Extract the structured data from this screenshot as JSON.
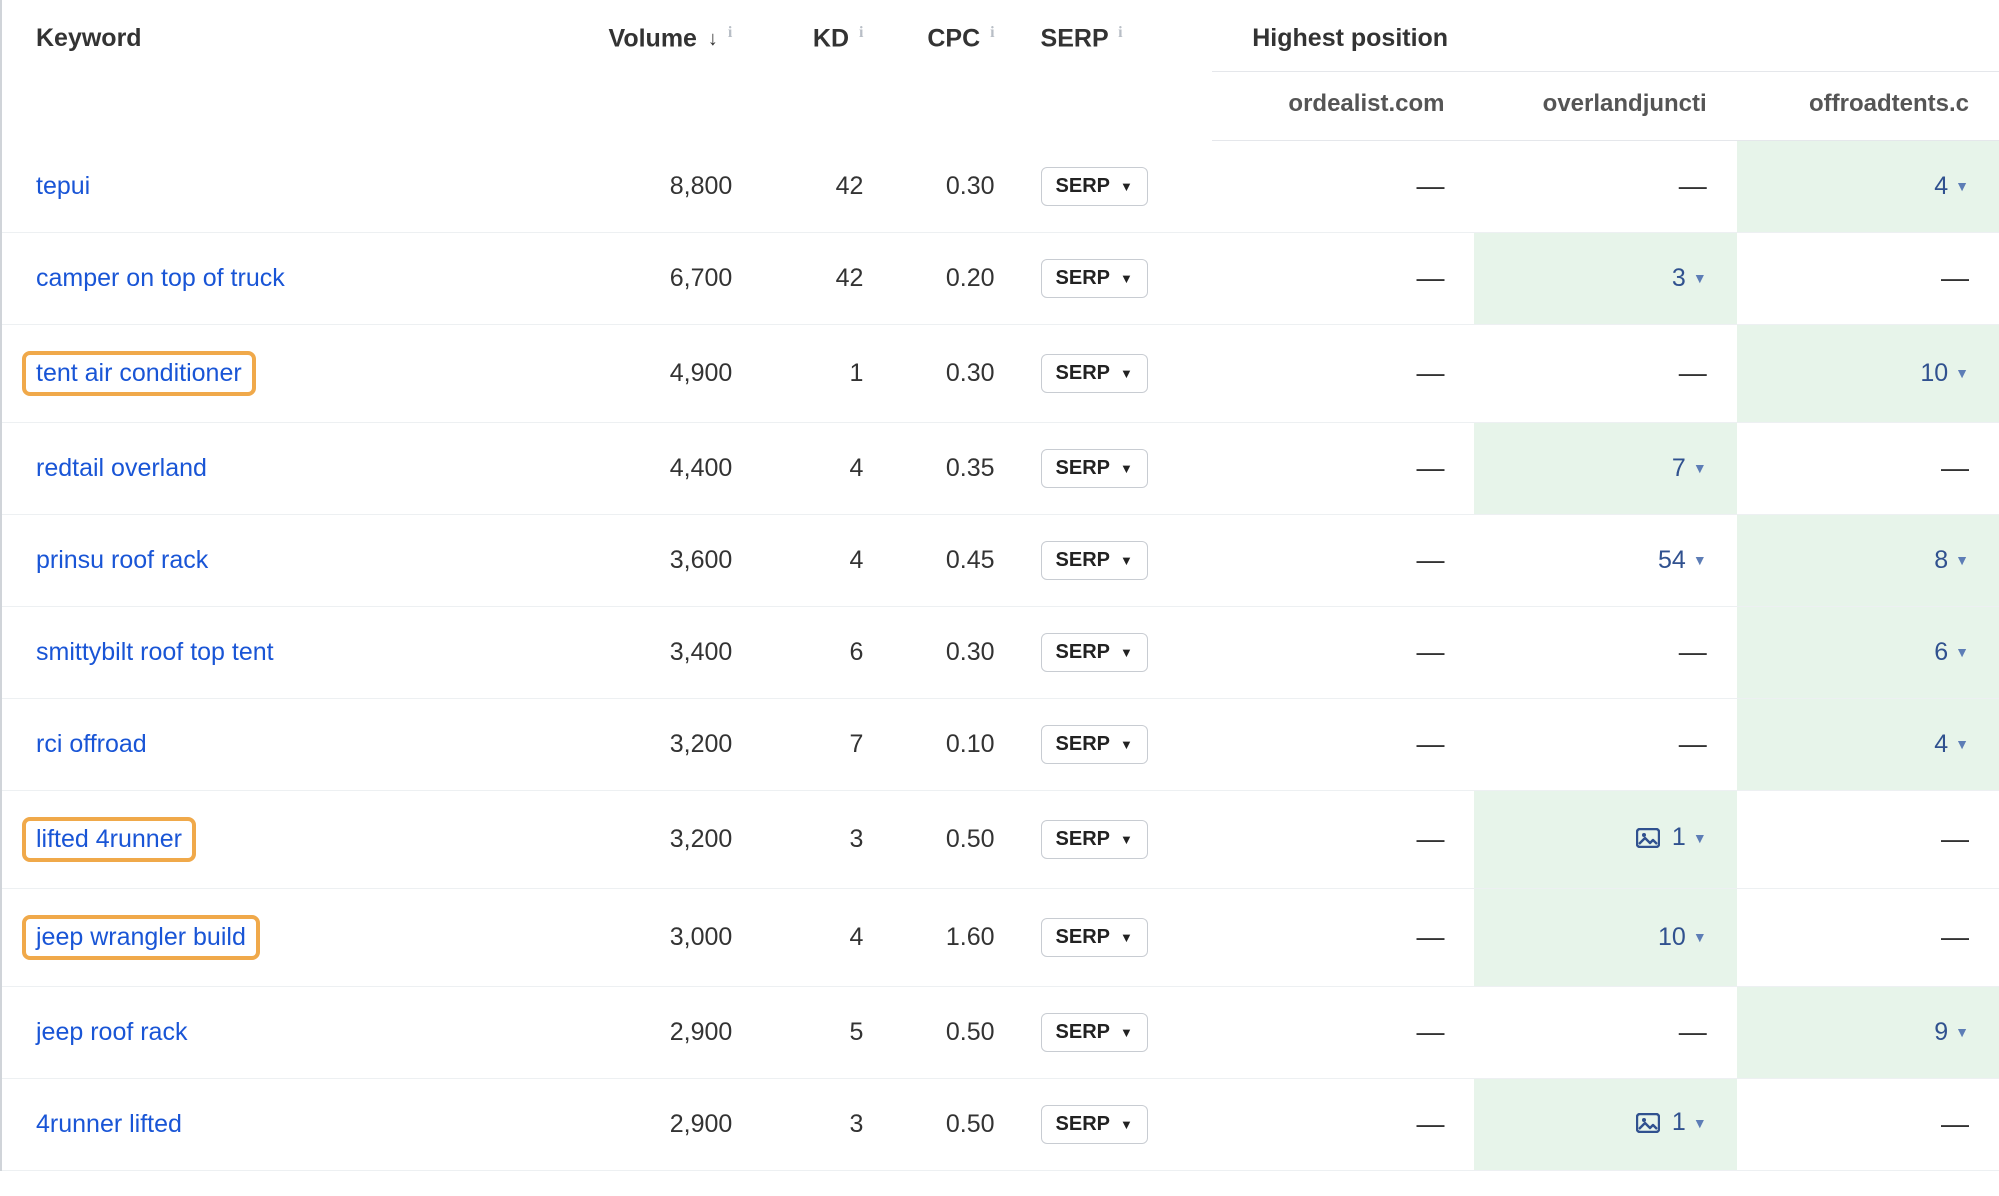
{
  "columns": {
    "keyword": "Keyword",
    "volume": "Volume",
    "kd": "KD",
    "cpc": "CPC",
    "serp": "SERP",
    "highest": "Highest position"
  },
  "sort_indicator": "↓",
  "info_glyph": "i",
  "serp_button_label": "SERP",
  "dash": "—",
  "competitors": [
    "ordealist.com",
    "overlandjuncti",
    "offroadtents.c"
  ],
  "rows": [
    {
      "keyword": "tepui",
      "highlight": false,
      "volume": "8,800",
      "kd": "42",
      "cpc": "0.30",
      "positions": [
        {
          "val": null,
          "hl": false,
          "img": false
        },
        {
          "val": null,
          "hl": false,
          "img": false
        },
        {
          "val": "4",
          "hl": true,
          "img": false
        }
      ]
    },
    {
      "keyword": "camper on top of truck",
      "highlight": false,
      "volume": "6,700",
      "kd": "42",
      "cpc": "0.20",
      "positions": [
        {
          "val": null,
          "hl": false,
          "img": false
        },
        {
          "val": "3",
          "hl": true,
          "img": false
        },
        {
          "val": null,
          "hl": false,
          "img": false
        }
      ]
    },
    {
      "keyword": "tent air conditioner",
      "highlight": true,
      "volume": "4,900",
      "kd": "1",
      "cpc": "0.30",
      "positions": [
        {
          "val": null,
          "hl": false,
          "img": false
        },
        {
          "val": null,
          "hl": false,
          "img": false
        },
        {
          "val": "10",
          "hl": true,
          "img": false
        }
      ]
    },
    {
      "keyword": "redtail overland",
      "highlight": false,
      "volume": "4,400",
      "kd": "4",
      "cpc": "0.35",
      "positions": [
        {
          "val": null,
          "hl": false,
          "img": false
        },
        {
          "val": "7",
          "hl": true,
          "img": false
        },
        {
          "val": null,
          "hl": false,
          "img": false
        }
      ]
    },
    {
      "keyword": "prinsu roof rack",
      "highlight": false,
      "volume": "3,600",
      "kd": "4",
      "cpc": "0.45",
      "positions": [
        {
          "val": null,
          "hl": false,
          "img": false
        },
        {
          "val": "54",
          "hl": false,
          "img": false
        },
        {
          "val": "8",
          "hl": true,
          "img": false
        }
      ]
    },
    {
      "keyword": "smittybilt roof top tent",
      "highlight": false,
      "volume": "3,400",
      "kd": "6",
      "cpc": "0.30",
      "positions": [
        {
          "val": null,
          "hl": false,
          "img": false
        },
        {
          "val": null,
          "hl": false,
          "img": false
        },
        {
          "val": "6",
          "hl": true,
          "img": false
        }
      ]
    },
    {
      "keyword": "rci offroad",
      "highlight": false,
      "volume": "3,200",
      "kd": "7",
      "cpc": "0.10",
      "positions": [
        {
          "val": null,
          "hl": false,
          "img": false
        },
        {
          "val": null,
          "hl": false,
          "img": false
        },
        {
          "val": "4",
          "hl": true,
          "img": false
        }
      ]
    },
    {
      "keyword": "lifted 4runner",
      "highlight": true,
      "volume": "3,200",
      "kd": "3",
      "cpc": "0.50",
      "positions": [
        {
          "val": null,
          "hl": false,
          "img": false
        },
        {
          "val": "1",
          "hl": true,
          "img": true
        },
        {
          "val": null,
          "hl": false,
          "img": false
        }
      ]
    },
    {
      "keyword": "jeep wrangler build",
      "highlight": true,
      "volume": "3,000",
      "kd": "4",
      "cpc": "1.60",
      "positions": [
        {
          "val": null,
          "hl": false,
          "img": false
        },
        {
          "val": "10",
          "hl": true,
          "img": false
        },
        {
          "val": null,
          "hl": false,
          "img": false
        }
      ]
    },
    {
      "keyword": "jeep roof rack",
      "highlight": false,
      "volume": "2,900",
      "kd": "5",
      "cpc": "0.50",
      "positions": [
        {
          "val": null,
          "hl": false,
          "img": false
        },
        {
          "val": null,
          "hl": false,
          "img": false
        },
        {
          "val": "9",
          "hl": true,
          "img": false
        }
      ]
    },
    {
      "keyword": "4runner lifted",
      "highlight": false,
      "volume": "2,900",
      "kd": "3",
      "cpc": "0.50",
      "positions": [
        {
          "val": null,
          "hl": false,
          "img": false
        },
        {
          "val": "1",
          "hl": true,
          "img": true
        },
        {
          "val": null,
          "hl": false,
          "img": false
        }
      ]
    }
  ]
}
